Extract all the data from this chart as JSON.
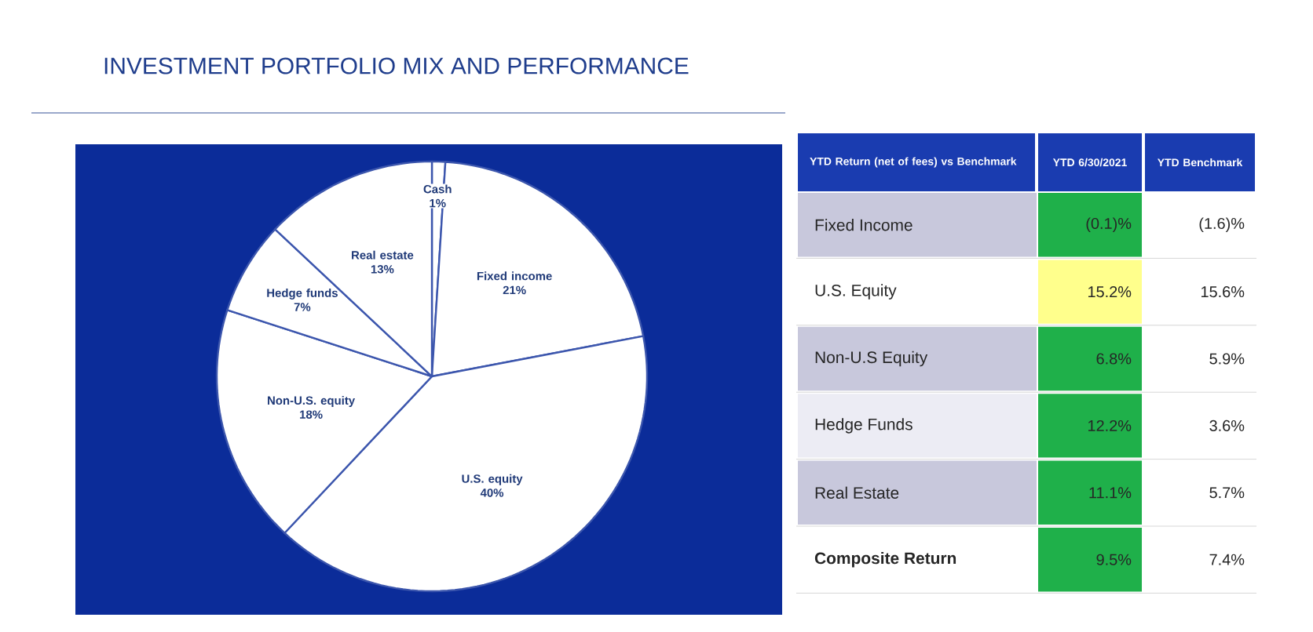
{
  "chart_data": [
    {
      "type": "pie",
      "title": "INVESTMENT PORTFOLIO MIX AND PERFORMANCE",
      "categories": [
        "Cash",
        "Fixed income",
        "U.S. equity",
        "Non-U.S. equity",
        "Hedge funds",
        "Real estate"
      ],
      "values": [
        1,
        21,
        40,
        18,
        7,
        13
      ],
      "value_labels": [
        "1%",
        "21%",
        "40%",
        "18%",
        "7%",
        "13%"
      ],
      "colors": [
        "#ffffff",
        "#ffffff",
        "#ffffff",
        "#ffffff",
        "#ffffff",
        "#ffffff"
      ]
    },
    {
      "type": "other",
      "categories": [
        "YTD Return (net of fees) vs Benchmark",
        "YTD 6/30/2021",
        "YTD Benchmark"
      ],
      "y_categories": [
        "Fixed Income",
        "U.S. Equity",
        "Non-U.S Equity",
        "Hedge Funds",
        "Real Estate",
        "Composite Return"
      ],
      "cell_labels": [
        [
          "(0.1)%",
          "(1.6)%"
        ],
        [
          "15.2%",
          "15.6%"
        ],
        [
          "6.8%",
          "5.9%"
        ],
        [
          "12.2%",
          "3.6%"
        ],
        [
          "11.1%",
          "5.7%"
        ],
        [
          "9.5%",
          "7.4%"
        ]
      ],
      "colors": [
        [
          "#c8c8dc",
          "#1fb04a"
        ],
        [
          "#ffffff",
          "#ffff8c"
        ],
        [
          "#c8c8dc",
          "#1fb04a"
        ],
        [
          "#ececf4",
          "#1fb04a"
        ],
        [
          "#c8c8dc",
          "#1fb04a"
        ],
        [
          "#ffffff",
          "#1fb04a"
        ]
      ]
    }
  ]
}
